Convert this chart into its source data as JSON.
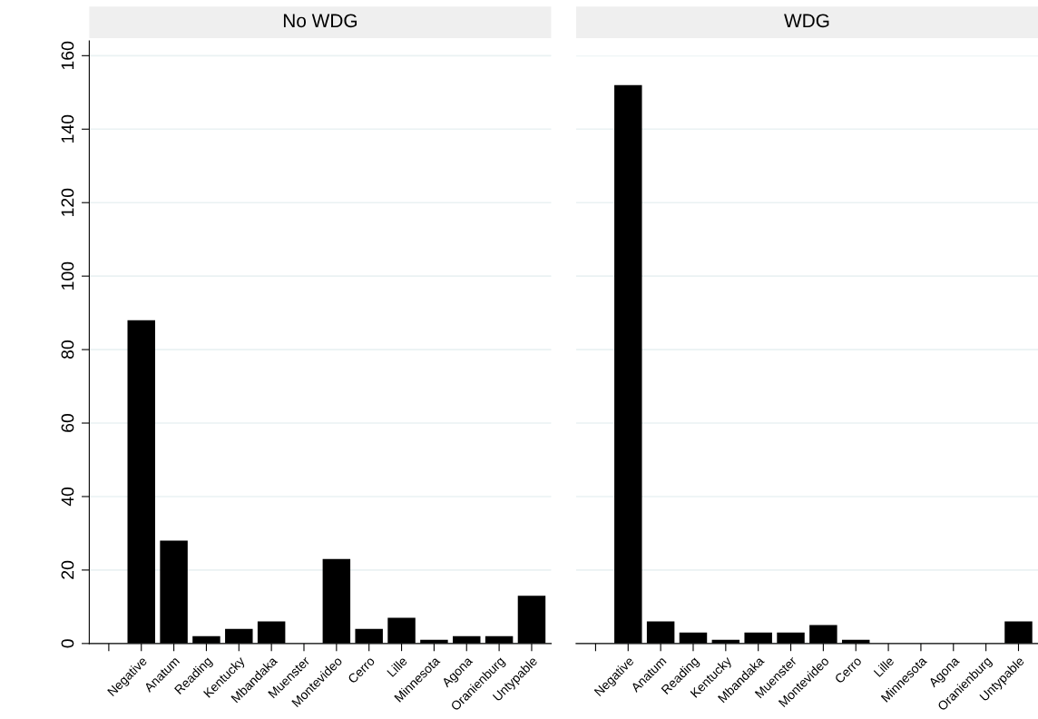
{
  "chart_data": [
    {
      "type": "bar",
      "title": "No WDG",
      "categories": [
        null,
        "Negative",
        "Anatum",
        "Reading",
        "Kentucky",
        "Mbandaka",
        "Muenster",
        "Montevideo",
        "Cerro",
        "Lille",
        "Minnesota",
        "Agona",
        "Oranienburg",
        "Untypable"
      ],
      "series": [
        {
          "color": "#000000",
          "values": [
            null,
            88,
            28,
            2,
            4,
            6,
            0,
            23,
            4,
            7,
            1,
            2,
            2,
            13
          ]
        }
      ],
      "ylim": [
        0,
        164
      ],
      "yticks": [
        0,
        20,
        40,
        60,
        80,
        100,
        120,
        140,
        160
      ],
      "grid": "y"
    },
    {
      "type": "bar",
      "title": "WDG",
      "categories": [
        null,
        "Negative",
        "Anatum",
        "Reading",
        "Kentucky",
        "Mbandaka",
        "Muenster",
        "Montevideo",
        "Cerro",
        "Lille",
        "Minnesota",
        "Agona",
        "Oranienburg",
        "Untypable"
      ],
      "series": [
        {
          "color": "#000000",
          "values": [
            null,
            152,
            6,
            3,
            1,
            3,
            3,
            5,
            1,
            0,
            0,
            0,
            0,
            6
          ]
        }
      ],
      "ylim": [
        0,
        160
      ],
      "yticks": [
        0,
        20,
        40,
        60,
        80,
        100,
        120,
        140,
        160
      ],
      "grid": "y",
      "tick_labels": "x"
    }
  ]
}
